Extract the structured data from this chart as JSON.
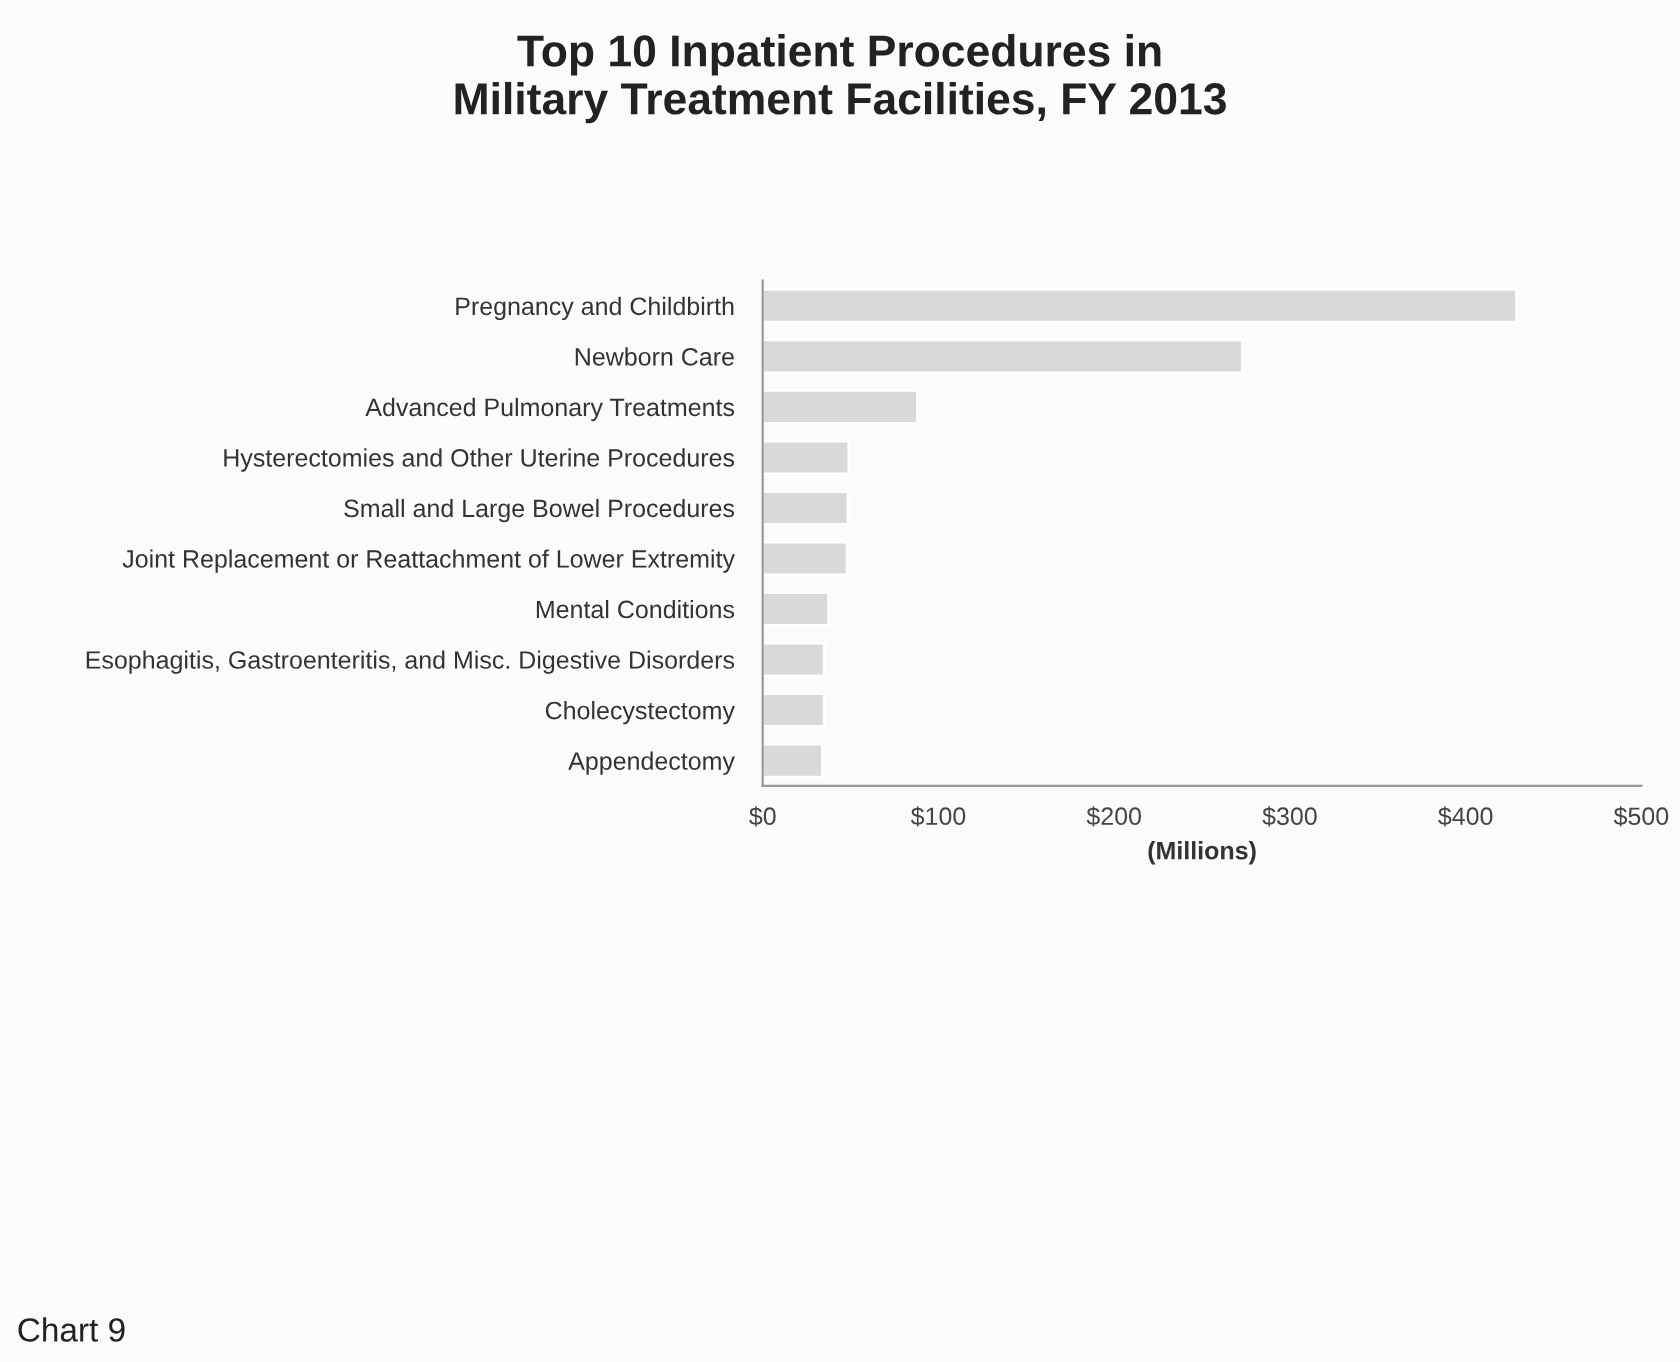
{
  "chart_data": {
    "type": "bar",
    "orientation": "horizontal",
    "title": "Top 10 Inpatient Procedures in\nMilitary Treatment Facilities, FY 2013",
    "xlabel": "(Millions)",
    "categories": [
      "Pregnancy and Childbirth",
      "Newborn Care",
      "Advanced Pulmonary Treatments",
      "Hysterectomies and Other Uterine Procedures",
      "Small and Large Bowel Procedures",
      "Joint Replacement or Reattachment of Lower Extremity",
      "Mental Conditions",
      "Esophagitis, Gastroenteritis, and Misc. Digestive Disorders",
      "Cholecystectomy",
      "Appendectomy"
    ],
    "values": [
      429,
      273,
      88,
      49,
      48.5,
      48,
      37.5,
      35,
      35,
      34
    ],
    "color": "#d9d9d9",
    "xlim": [
      0,
      500
    ],
    "xticks": [
      {
        "value": 0,
        "label": "$0"
      },
      {
        "value": 100,
        "label": "$100"
      },
      {
        "value": 200,
        "label": "$200"
      },
      {
        "value": 300,
        "label": "$300"
      },
      {
        "value": 400,
        "label": "$400"
      },
      {
        "value": 500,
        "label": "$500"
      }
    ],
    "annotations": [
      "Chart 9"
    ]
  }
}
